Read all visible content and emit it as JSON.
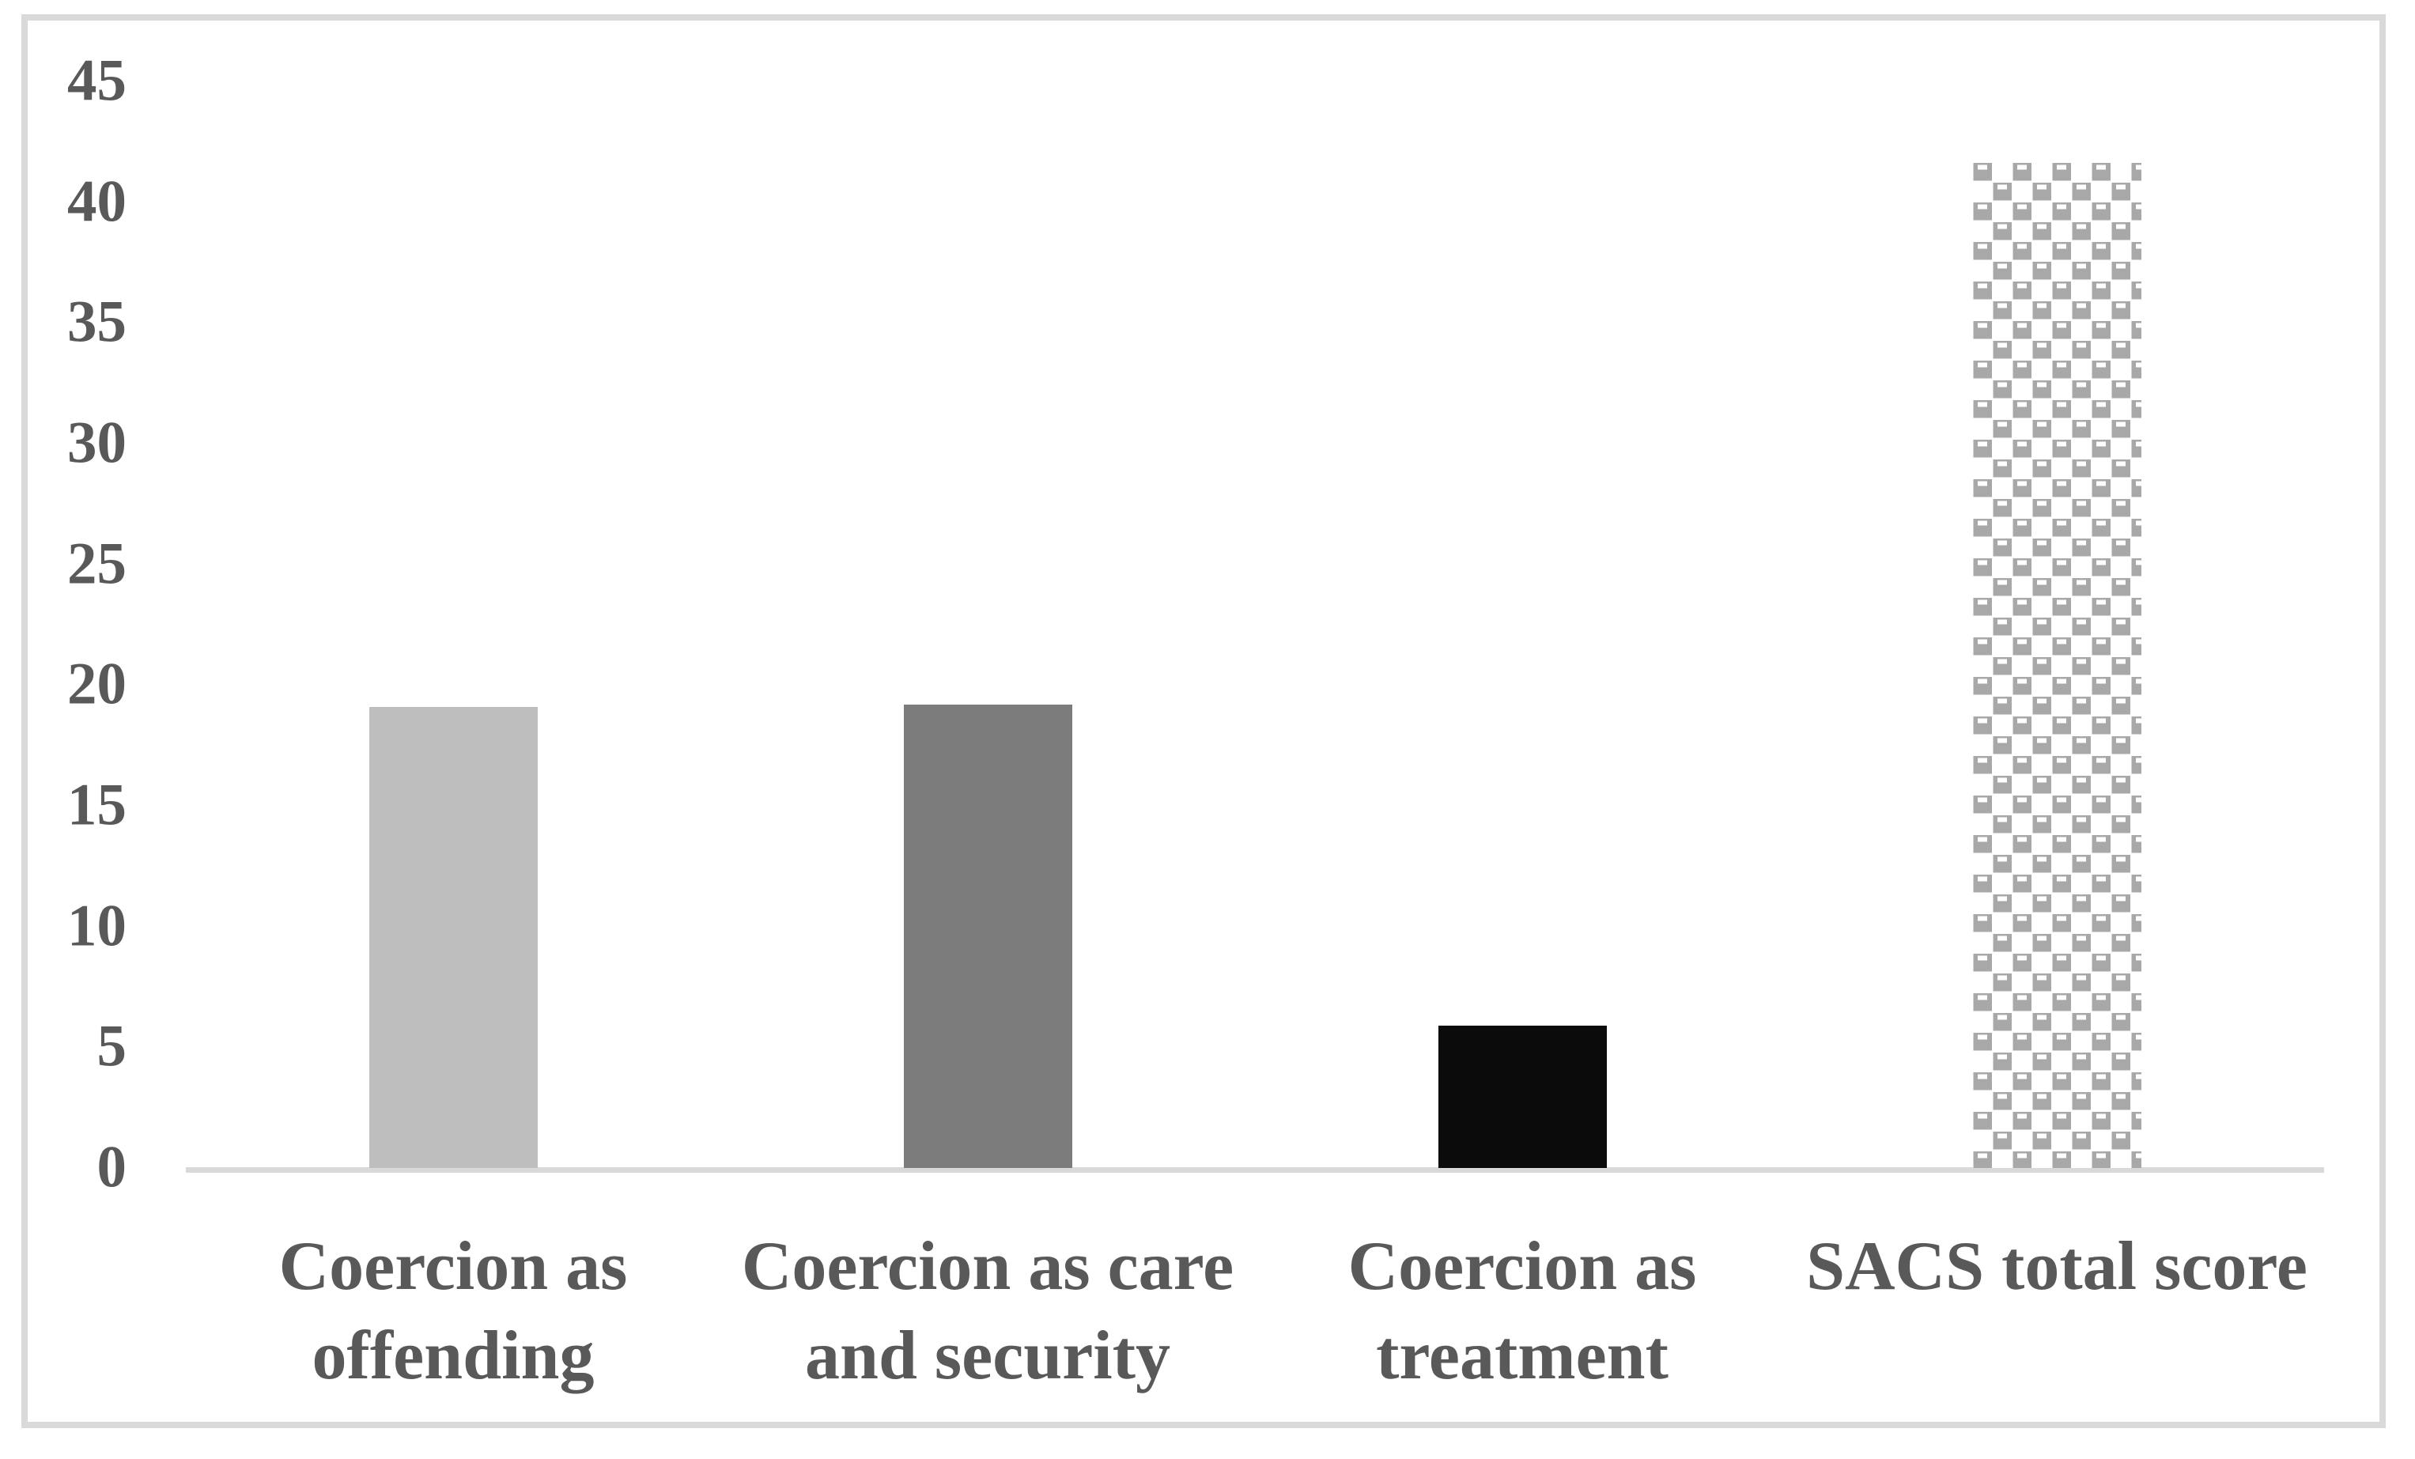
{
  "chart_data": {
    "type": "bar",
    "title": "",
    "categories": [
      "Coercion as offending",
      "Coercion as care and security",
      "Coercion as treatment",
      "SACS total score"
    ],
    "category_label_lines": [
      [
        "Coercion as",
        "offending"
      ],
      [
        "Coercion as care",
        "and security"
      ],
      [
        "Coercion as",
        "treatment"
      ],
      [
        "SACS total score"
      ]
    ],
    "values": [
      19.1,
      19.2,
      5.9,
      41.7
    ],
    "xlabel": "",
    "ylabel": "",
    "ylim": [
      0,
      45
    ],
    "yticks": [
      0,
      5,
      10,
      15,
      20,
      25,
      30,
      35,
      40,
      45
    ],
    "grid": false,
    "legend_position": "none",
    "bar_styles": [
      {
        "fill": "solid",
        "color": "#BEBEBE"
      },
      {
        "fill": "solid",
        "color": "#7C7C7C"
      },
      {
        "fill": "solid",
        "color": "#0B0B0B"
      },
      {
        "fill": "pattern",
        "color": "#A8A8A8",
        "pattern": "divot-checkerboard",
        "pattern_background": "#FFFFFF"
      }
    ],
    "axis_line_color": "#D9D9D9",
    "frame_border_color": "#D9D9D9",
    "text_color": "#595959"
  }
}
